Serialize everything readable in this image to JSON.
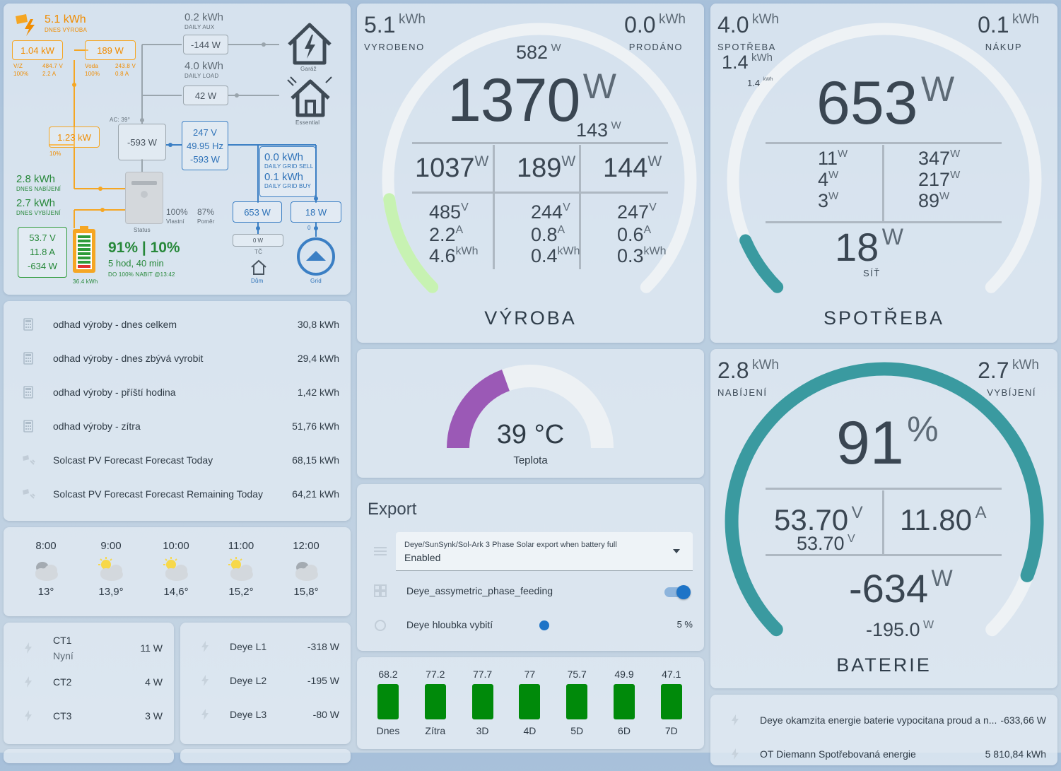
{
  "flow": {
    "solar_today": "5.1 kWh",
    "solar_today_label": "DNES VÝROBA",
    "pv_total": "1.04 kW",
    "pv1_name": "V/Z",
    "pv1_v": "484.7 V",
    "pv1_pct": "100%",
    "pv1_a": "2.2 A",
    "pv2_power": "189 W",
    "pv2_name": "Voda",
    "pv2_v": "243.8 V",
    "pv2_pct": "100%",
    "pv2_a": "0.8 A",
    "aux_today": "0.2 kWh",
    "aux_label": "DAILY AUX",
    "aux_power": "-144 W",
    "load_today": "4.0 kWh",
    "load_label": "DAILY LOAD",
    "load_power": "42 W",
    "garage_label": "Garáž",
    "essential_label": "Essential",
    "ac_temp": "AC: 39°",
    "inverter_power": "-593 W",
    "gen_power": "1.23 kW",
    "gen_pct": "10%",
    "grid_v": "247 V",
    "grid_hz": "49.95 Hz",
    "grid_w": "-593 W",
    "grid_sell": "0.0 kWh",
    "grid_sell_label": "DAILY GRID SELL",
    "grid_buy": "0.1 kWh",
    "grid_buy_label": "DAILY GRID BUY",
    "charge_today": "2.8 kWh",
    "charge_label": "DNES NABÍJENÍ",
    "discharge_today": "2.7 kWh",
    "discharge_label": "DNES VYBÍJENÍ",
    "bat_v": "53.7 V",
    "bat_a": "11.8 A",
    "bat_w": "-634 W",
    "bat_capacity": "36.4 kWh",
    "soc": "91% | 10%",
    "time_left": "5 hod, 40 min",
    "full_at": "DO 100% NABIT @13:42",
    "self_pct": "100%",
    "self_label": "Vlastní",
    "ratio_pct": "87%",
    "ratio_label": "Poměr",
    "status_label": "Status",
    "house_w": "653 W",
    "grid_load_w": "18 W",
    "heat_pump_w": "0 W",
    "heat_pump_label": "TČ",
    "grid_zero": "0",
    "home_label": "Dům",
    "grid_label": "Grid"
  },
  "production": {
    "produced_value": "5.1",
    "produced_unit": "kWh",
    "produced_label": "VYROBENO",
    "sold_value": "0.0",
    "sold_unit": "kWh",
    "sold_label": "PRODÁNO",
    "top_value": "582",
    "main_value": "1370",
    "sub_value": "143",
    "unit_w": "W",
    "unit_v": "V",
    "unit_a": "A",
    "unit_kwh": "kWh",
    "cols": [
      {
        "w": "1037",
        "v": "485",
        "a": "2.2",
        "kwh": "4.6"
      },
      {
        "w": "189",
        "v": "244",
        "a": "0.8",
        "kwh": "0.4"
      },
      {
        "w": "144",
        "v": "247",
        "a": "0.6",
        "kwh": "0.3"
      }
    ],
    "title": "VÝROBA",
    "gauge_fraction": 0.14
  },
  "consumption": {
    "cons_value": "4.0",
    "cons_unit": "kWh",
    "cons_label": "SPOTŘEBA",
    "cons_sub_value": "1.4",
    "cons_sub_unit": "kWh",
    "cons_tiny_value": "1.4",
    "cons_tiny_unit": "kWh",
    "buy_value": "0.1",
    "buy_unit": "kWh",
    "buy_label": "NÁKUP",
    "main_value": "653",
    "unit_w": "W",
    "left": [
      "11",
      "4",
      "3"
    ],
    "right": [
      "347",
      "217",
      "89"
    ],
    "grid_value": "18",
    "grid_label": "SÍŤ",
    "title": "SPOTŘEBA",
    "gauge_fraction": 0.08
  },
  "battery": {
    "charge_value": "2.8",
    "charge_unit": "kWh",
    "charge_label": "NABÍJENÍ",
    "discharge_value": "2.7",
    "discharge_unit": "kWh",
    "discharge_label": "VYBÍJENÍ",
    "soc_value": "91",
    "soc_unit": "%",
    "volt_value": "53.70",
    "volt_unit": "V",
    "volt_sub_value": "53.70",
    "volt_sub_unit": "V",
    "amp_value": "11.80",
    "amp_unit": "A",
    "power_value": "-634",
    "power_unit": "W",
    "power_sub_value": "-195.0",
    "power_sub_unit": "W",
    "title": "BATERIE",
    "gauge_fraction": 0.91
  },
  "forecast_list": [
    {
      "name": "odhad výroby - dnes celkem",
      "value": "30,8 kWh",
      "icon": "calculator-icon"
    },
    {
      "name": "odhad výroby - dnes zbývá vyrobit",
      "value": "29,4 kWh",
      "icon": "calculator-icon"
    },
    {
      "name": "odhad výroby - příští hodina",
      "value": "1,42 kWh",
      "icon": "calculator-icon"
    },
    {
      "name": "odhad výroby - zítra",
      "value": "51,76 kWh",
      "icon": "calculator-icon"
    },
    {
      "name": "Solcast PV Forecast Forecast Today",
      "value": "68,15 kWh",
      "icon": "solar-forecast-icon"
    },
    {
      "name": "Solcast PV Forecast Forecast Remaining Today",
      "value": "64,21 kWh",
      "icon": "solar-forecast-icon"
    }
  ],
  "temperature": {
    "value": "39 °C",
    "label": "Teplota",
    "fraction": 0.39,
    "color": "#9b59b6"
  },
  "export": {
    "title": "Export",
    "select_label": "Deye/SunSynk/Sol-Ark 3 Phase Solar export when battery full",
    "select_value": "Enabled",
    "toggle_label": "Deye_assymetric_phase_feeding",
    "toggle_on": true,
    "slider_label": "Deye hloubka vybití",
    "slider_value": "5 %",
    "slider_level": 0.05
  },
  "weather": [
    {
      "time": "8:00",
      "temp": "13°",
      "icon": "cloudy-icon"
    },
    {
      "time": "9:00",
      "temp": "13,9°",
      "icon": "partly-sunny-icon"
    },
    {
      "time": "10:00",
      "temp": "14,6°",
      "icon": "partly-sunny-icon"
    },
    {
      "time": "11:00",
      "temp": "15,2°",
      "icon": "partly-sunny-icon"
    },
    {
      "time": "12:00",
      "temp": "15,8°",
      "icon": "cloudy-icon"
    }
  ],
  "ct_list": [
    {
      "name": "CT1",
      "sub": "Nyní",
      "value": "11 W"
    },
    {
      "name": "CT2",
      "sub": "",
      "value": "4 W"
    },
    {
      "name": "CT3",
      "sub": "",
      "value": "3 W"
    }
  ],
  "deye_list": [
    {
      "name": "Deye L1",
      "value": "-318 W"
    },
    {
      "name": "Deye L2",
      "value": "-195 W"
    },
    {
      "name": "Deye L3",
      "value": "-80 W"
    }
  ],
  "chart_data": {
    "type": "bar",
    "categories": [
      "Dnes",
      "Zítra",
      "3D",
      "4D",
      "5D",
      "6D",
      "7D"
    ],
    "values": [
      68.2,
      77.2,
      77.7,
      77.0,
      75.7,
      49.9,
      47.1
    ],
    "title": "",
    "xlabel": "",
    "ylabel": ""
  },
  "bottom_list": [
    {
      "name": "Deye okamzita energie baterie vypocitana proud a n...",
      "value": "-633,66 W"
    },
    {
      "name": "OT Diemann Spotřebovaná energie",
      "value": "5 810,84 kWh"
    }
  ],
  "colors": {
    "orange": "#f5a623",
    "blue": "#2e72b8",
    "green": "#27883a",
    "teal": "#3a9aa0",
    "light_green": "#c7f2b2",
    "bar_green": "#008a0a"
  }
}
